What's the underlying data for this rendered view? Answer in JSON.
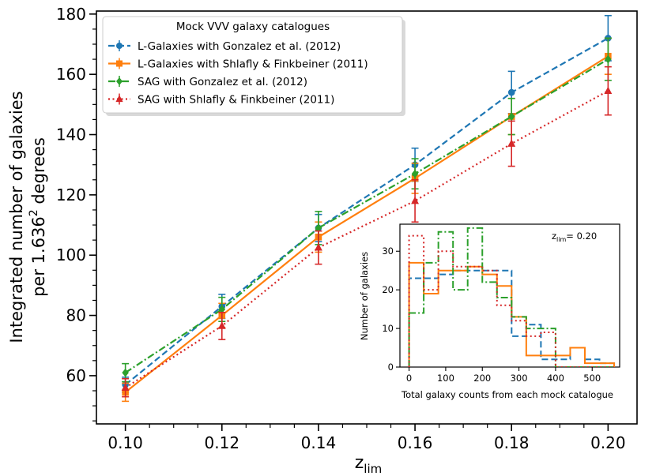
{
  "chart_data": [
    {
      "type": "line",
      "xlabel": "z",
      "xlabel_sub": "lim",
      "ylabel_line1": "Integrated number of galaxies",
      "ylabel_line2_pre": "per 1.636",
      "ylabel_line2_sup": "2",
      "ylabel_line2_post": " degrees",
      "xlim": [
        0.094,
        0.206
      ],
      "ylim": [
        44,
        181
      ],
      "x": [
        0.1,
        0.12,
        0.14,
        0.16,
        0.18,
        0.2
      ],
      "x_ticks": [
        "0.10",
        "0.12",
        "0.14",
        "0.16",
        "0.18",
        "0.20"
      ],
      "y_ticks": [
        "60",
        "80",
        "100",
        "120",
        "140",
        "160",
        "180"
      ],
      "legend": {
        "title": "Mock VVV galaxy catalogues",
        "position": "top-left"
      },
      "series": [
        {
          "name": "L-Galaxies with Gonzalez et al. (2012)",
          "color": "#1f77b4",
          "linestyle": "dashed",
          "marker": "circle",
          "y": [
            57,
            83,
            109,
            130,
            154,
            172
          ],
          "yerr": [
            2.5,
            4,
            4.5,
            5.5,
            7,
            7.5
          ]
        },
        {
          "name": "L-Galaxies with Shlafly & Finkbeiner (2011)",
          "color": "#ff7f0e",
          "linestyle": "solid",
          "marker": "square",
          "y": [
            54.5,
            80,
            106,
            125.5,
            146,
            166
          ],
          "yerr": [
            3,
            4,
            5,
            5,
            6,
            6
          ]
        },
        {
          "name": "SAG with Gonzalez et al. (2012)",
          "color": "#2ca02c",
          "linestyle": "dashdot",
          "marker": "diamond",
          "y": [
            61,
            82,
            109,
            127,
            146,
            165
          ],
          "yerr": [
            3,
            4,
            5.5,
            5,
            6,
            7
          ]
        },
        {
          "name": "SAG with Shlafly & Finkbeiner (2011)",
          "color": "#d62728",
          "linestyle": "dotted",
          "marker": "triangle",
          "y": [
            56,
            76.5,
            102.5,
            118,
            137,
            154.5
          ],
          "yerr": [
            3,
            4.5,
            5.5,
            7,
            7.5,
            8
          ]
        }
      ]
    },
    {
      "type": "histogram",
      "annotation_pre": "z",
      "annotation_sub": "lim",
      "annotation_post": "= 0.20",
      "xlabel": "Total galaxy counts from each mock catalogue",
      "ylabel": "Number of galaxies",
      "xlim": [
        -25,
        575
      ],
      "ylim": [
        0,
        37
      ],
      "x_ticks": [
        "0",
        "100",
        "200",
        "300",
        "400",
        "500"
      ],
      "y_ticks": [
        "0",
        "10",
        "20",
        "30"
      ],
      "bin_edges": [
        0,
        40,
        80,
        120,
        160,
        200,
        240,
        280,
        320,
        360,
        400,
        440,
        480,
        520,
        560
      ],
      "series": [
        {
          "color": "#1f77b4",
          "linestyle": "dashed",
          "values": [
            23,
            23,
            24,
            25,
            25,
            25,
            25,
            8,
            11,
            2,
            2,
            5,
            2,
            1
          ]
        },
        {
          "color": "#ff7f0e",
          "linestyle": "solid",
          "values": [
            27,
            19,
            25,
            25,
            26,
            24,
            21,
            13,
            3,
            3,
            3,
            5,
            1,
            1
          ]
        },
        {
          "color": "#2ca02c",
          "linestyle": "dashdot",
          "values": [
            14,
            27,
            35,
            20,
            36,
            22,
            18,
            13,
            10,
            10,
            0,
            0,
            0,
            0
          ]
        },
        {
          "color": "#d62728",
          "linestyle": "dotted",
          "values": [
            34,
            20,
            30,
            26,
            26,
            25,
            16,
            12,
            8,
            9,
            0,
            0,
            0,
            0
          ]
        }
      ]
    }
  ]
}
